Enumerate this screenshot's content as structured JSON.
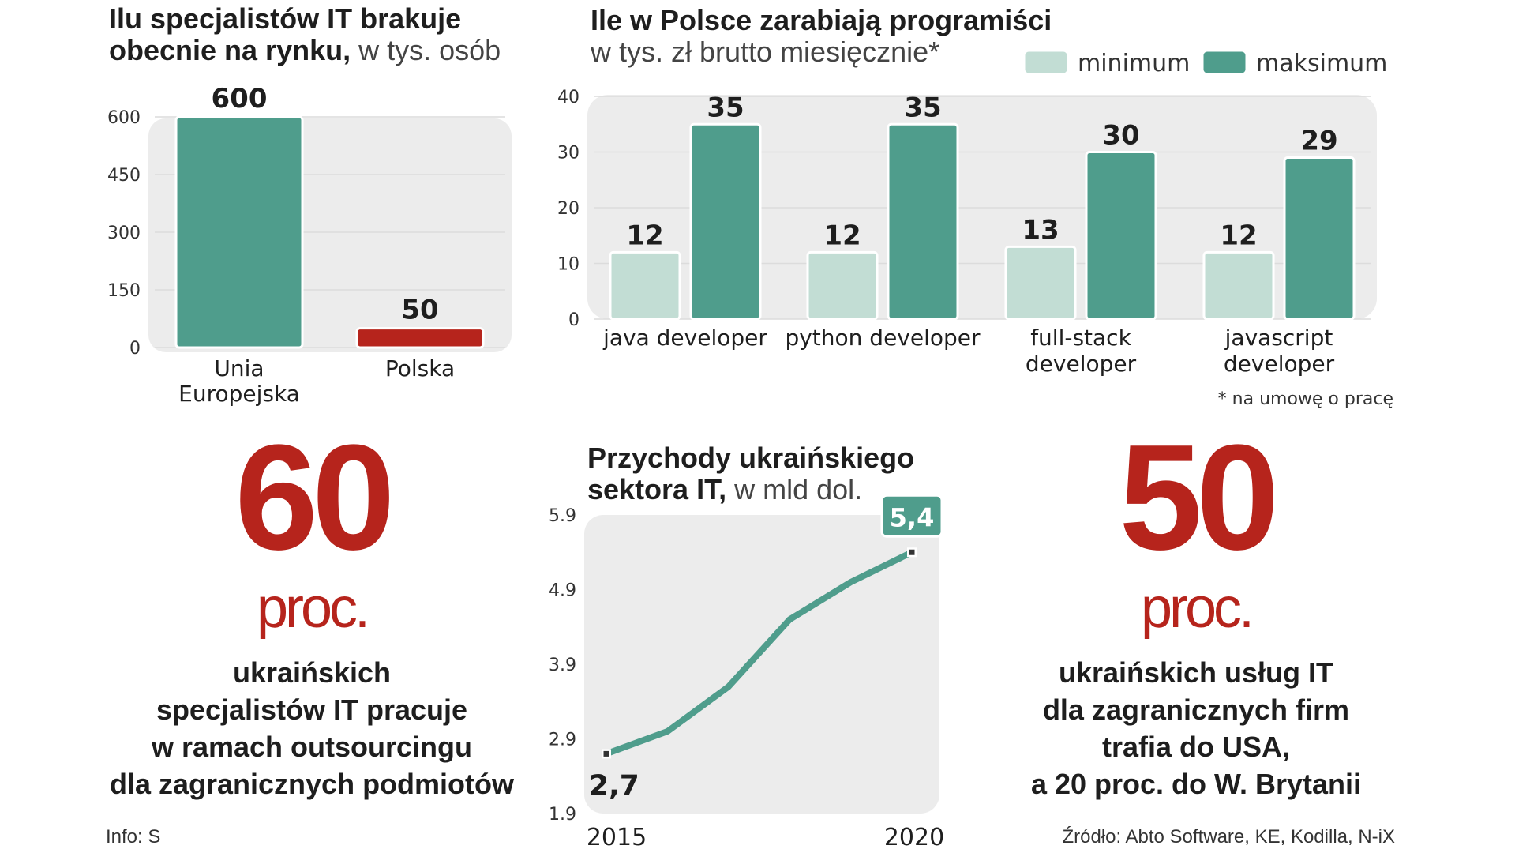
{
  "chart_data": [
    {
      "type": "bar",
      "title": "Ilu specjalistów IT brakuje",
      "title_line2": "obecnie na rynku,",
      "subtitle": "w tys. osób",
      "categories": [
        [
          "Unia",
          "Europejska"
        ],
        [
          "Polska"
        ]
      ],
      "values": [
        600,
        50
      ],
      "value_labels": [
        "600",
        "50"
      ],
      "yticks": [
        "0",
        "150",
        "300",
        "450",
        "600"
      ],
      "ylim": [
        0,
        600
      ],
      "colors": [
        "#4f9d8c",
        "#b6241c"
      ]
    },
    {
      "type": "bar",
      "title": "Ile w Polsce zarabiają programiści",
      "subtitle": "w tys. zł brutto miesięcznie*",
      "categories": [
        [
          "java developer"
        ],
        [
          "python developer"
        ],
        [
          "full-stack",
          "developer"
        ],
        [
          "javascript",
          "developer"
        ]
      ],
      "series": [
        {
          "name": "minimum",
          "values": [
            12,
            12,
            13,
            12
          ],
          "labels": [
            "12",
            "12",
            "13",
            "12"
          ],
          "color": "#c2ddd4"
        },
        {
          "name": "maksimum",
          "values": [
            35,
            35,
            30,
            29
          ],
          "labels": [
            "35",
            "35",
            "30",
            "29"
          ],
          "color": "#4f9d8c"
        }
      ],
      "yticks": [
        "0",
        "10",
        "20",
        "30",
        "40"
      ],
      "ylim": [
        0,
        40
      ],
      "legend_position": "top-right",
      "footnote": "* na umowę o pracę"
    },
    {
      "type": "line",
      "title": "Przychody ukraińskiego",
      "title_line2": "sektora IT,",
      "subtitle": "w mld dol.",
      "x": [
        2015,
        2016,
        2017,
        2018,
        2019,
        2020
      ],
      "y": [
        2.7,
        3.0,
        3.6,
        4.5,
        5.0,
        5.4
      ],
      "xticks": [
        "2015",
        "2020"
      ],
      "yticks": [
        "1.9",
        "2.9",
        "3.9",
        "4.9",
        "5.9"
      ],
      "ylim": [
        1.9,
        5.9
      ],
      "start_label": "2,7",
      "end_label": "5,4",
      "color": "#4f9d8c"
    }
  ],
  "stats": {
    "left": {
      "number": "60",
      "unit": "proc.",
      "lines": [
        "ukraińskich",
        "specjalistów IT pracuje",
        "w ramach outsourcingu",
        "dla zagranicznych podmiotów"
      ]
    },
    "right": {
      "number": "50",
      "unit": "proc.",
      "lines": [
        "ukraińskich usług IT",
        "dla zagranicznych firm",
        "trafia do USA,",
        "a 20 proc. do W. Brytanii"
      ]
    }
  },
  "footer": {
    "info": "Info: S",
    "source": "Źródło: Abto Software, KE, Kodilla, N-iX"
  },
  "colors": {
    "accent_red": "#b6241c",
    "teal": "#4f9d8c",
    "light_teal": "#c2ddd4",
    "panel": "#ececec"
  }
}
